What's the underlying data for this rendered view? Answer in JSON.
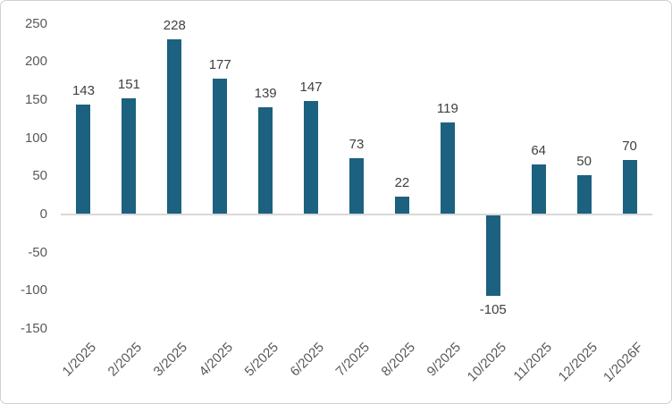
{
  "chart_data": {
    "type": "bar",
    "title": "",
    "xlabel": "",
    "ylabel": "",
    "categories": [
      "1/2025",
      "2/2025",
      "3/2025",
      "4/2025",
      "5/2025",
      "6/2025",
      "7/2025",
      "8/2025",
      "9/2025",
      "10/2025",
      "11/2025",
      "12/2025",
      "1/2026F"
    ],
    "values": [
      143,
      151,
      228,
      177,
      139,
      147,
      73,
      22,
      119,
      -105,
      64,
      50,
      70
    ],
    "y_ticks": [
      250,
      200,
      150,
      100,
      50,
      0,
      -50,
      -100,
      -150
    ],
    "ylim": [
      -150,
      250
    ],
    "grid": false,
    "legend_position": "none",
    "colors": {
      "bar": "#1C617F",
      "axis_line": "#D9D9D9",
      "tick_text": "#595959",
      "value_text": "#404040",
      "frame_border": "#D2D0D0",
      "background": "#FFFFFF"
    }
  }
}
